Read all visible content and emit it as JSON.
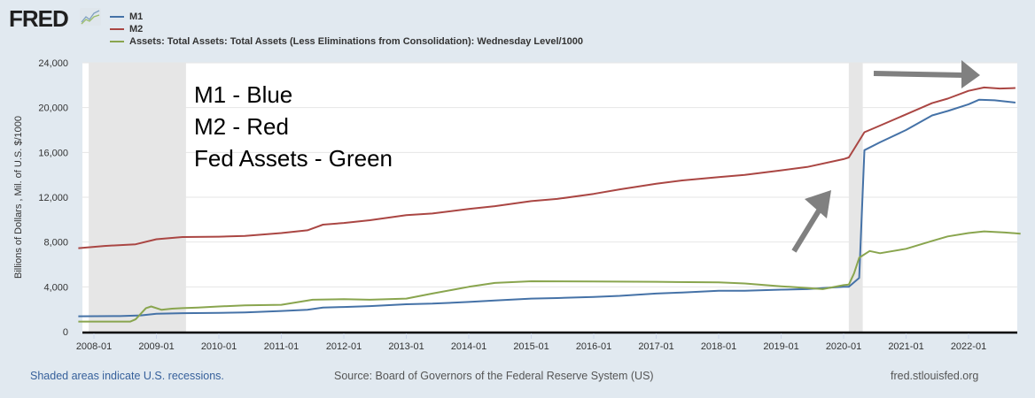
{
  "header": {
    "logo_text": "FRED",
    "logo_icon": "chart-line-icon",
    "legend": [
      {
        "label": "M1",
        "color": "#4572a7"
      },
      {
        "label": "M2",
        "color": "#aa4643"
      },
      {
        "label": "Assets: Total Assets: Total Assets (Less Eliminations from Consolidation): Wednesday Level/1000",
        "color": "#89a54e"
      }
    ]
  },
  "annotation": {
    "lines": [
      "M1 - Blue",
      "M2 - Red",
      "Fed Assets - Green"
    ],
    "arrows": [
      "arrow-up-right-icon",
      "arrow-right-icon"
    ],
    "arrow_color": "#808080"
  },
  "footer": {
    "recession_note": "Shaded areas indicate U.S. recessions.",
    "source": "Source: Board of Governors of the Federal Reserve System (US)",
    "site": "fred.stlouisfed.org"
  },
  "chart_data": {
    "type": "line",
    "title": "",
    "xlabel": "",
    "ylabel": "Billions of Dollars , Mil. of U.S. $/1000",
    "xlim": [
      "2007-10",
      "2022-11"
    ],
    "ylim": [
      0,
      24000
    ],
    "grid": true,
    "legend_position": "top-left",
    "x_ticks": [
      "2008-01",
      "2009-01",
      "2010-01",
      "2011-01",
      "2012-01",
      "2013-01",
      "2014-01",
      "2015-01",
      "2016-01",
      "2017-01",
      "2018-01",
      "2019-01",
      "2020-01",
      "2021-01",
      "2022-01"
    ],
    "y_ticks": [
      "0",
      "4,000",
      "8,000",
      "12,000",
      "16,000",
      "20,000",
      "24,000"
    ],
    "y_tick_values": [
      0,
      4000,
      8000,
      12000,
      16000,
      20000,
      24000
    ],
    "recessions": [
      [
        "2007-12",
        "2009-06"
      ],
      [
        "2020-02",
        "2020-04"
      ]
    ],
    "series": [
      {
        "name": "M1",
        "color": "#4572a7",
        "points": [
          [
            "2007-10",
            1370
          ],
          [
            "2008-06",
            1390
          ],
          [
            "2008-10",
            1450
          ],
          [
            "2009-01",
            1600
          ],
          [
            "2009-06",
            1650
          ],
          [
            "2010-01",
            1680
          ],
          [
            "2010-06",
            1720
          ],
          [
            "2011-01",
            1850
          ],
          [
            "2011-06",
            1950
          ],
          [
            "2011-09",
            2150
          ],
          [
            "2012-01",
            2200
          ],
          [
            "2012-06",
            2280
          ],
          [
            "2013-01",
            2450
          ],
          [
            "2013-06",
            2500
          ],
          [
            "2014-01",
            2650
          ],
          [
            "2014-06",
            2780
          ],
          [
            "2015-01",
            2950
          ],
          [
            "2015-06",
            3000
          ],
          [
            "2016-01",
            3100
          ],
          [
            "2016-06",
            3200
          ],
          [
            "2017-01",
            3400
          ],
          [
            "2017-06",
            3500
          ],
          [
            "2018-01",
            3650
          ],
          [
            "2018-06",
            3650
          ],
          [
            "2019-01",
            3750
          ],
          [
            "2019-06",
            3800
          ],
          [
            "2020-01",
            4000
          ],
          [
            "2020-02",
            4000
          ],
          [
            "2020-04",
            4800
          ],
          [
            "2020-05",
            16200
          ],
          [
            "2020-08",
            16900
          ],
          [
            "2021-01",
            18000
          ],
          [
            "2021-06",
            19300
          ],
          [
            "2021-09",
            19700
          ],
          [
            "2022-01",
            20300
          ],
          [
            "2022-03",
            20700
          ],
          [
            "2022-06",
            20650
          ],
          [
            "2022-10",
            20450
          ]
        ]
      },
      {
        "name": "M2",
        "color": "#aa4643",
        "points": [
          [
            "2007-10",
            7450
          ],
          [
            "2008-03",
            7650
          ],
          [
            "2008-09",
            7800
          ],
          [
            "2009-01",
            8250
          ],
          [
            "2009-06",
            8450
          ],
          [
            "2010-01",
            8480
          ],
          [
            "2010-06",
            8550
          ],
          [
            "2011-01",
            8800
          ],
          [
            "2011-06",
            9050
          ],
          [
            "2011-09",
            9550
          ],
          [
            "2012-01",
            9700
          ],
          [
            "2012-06",
            9950
          ],
          [
            "2013-01",
            10400
          ],
          [
            "2013-06",
            10550
          ],
          [
            "2014-01",
            10950
          ],
          [
            "2014-06",
            11200
          ],
          [
            "2015-01",
            11650
          ],
          [
            "2015-06",
            11850
          ],
          [
            "2016-01",
            12300
          ],
          [
            "2016-06",
            12700
          ],
          [
            "2017-01",
            13200
          ],
          [
            "2017-06",
            13500
          ],
          [
            "2018-01",
            13800
          ],
          [
            "2018-06",
            14000
          ],
          [
            "2019-01",
            14400
          ],
          [
            "2019-06",
            14700
          ],
          [
            "2020-01",
            15400
          ],
          [
            "2020-02",
            15550
          ],
          [
            "2020-03",
            16300
          ],
          [
            "2020-05",
            17800
          ],
          [
            "2020-07",
            18200
          ],
          [
            "2021-01",
            19400
          ],
          [
            "2021-06",
            20400
          ],
          [
            "2021-09",
            20800
          ],
          [
            "2022-01",
            21500
          ],
          [
            "2022-04",
            21800
          ],
          [
            "2022-07",
            21700
          ],
          [
            "2022-10",
            21750
          ]
        ]
      },
      {
        "name": "Assets: Total Assets: Total Assets (Less Eliminations from Consolidation): Wednesday Level/1000",
        "color": "#89a54e",
        "points": [
          [
            "2007-10",
            900
          ],
          [
            "2008-08",
            900
          ],
          [
            "2008-09",
            1100
          ],
          [
            "2008-11",
            2100
          ],
          [
            "2008-12",
            2250
          ],
          [
            "2009-02",
            1950
          ],
          [
            "2009-04",
            2050
          ],
          [
            "2009-06",
            2100
          ],
          [
            "2009-09",
            2150
          ],
          [
            "2010-01",
            2250
          ],
          [
            "2010-06",
            2350
          ],
          [
            "2011-01",
            2400
          ],
          [
            "2011-07",
            2850
          ],
          [
            "2012-01",
            2900
          ],
          [
            "2012-06",
            2850
          ],
          [
            "2013-01",
            2950
          ],
          [
            "2013-06",
            3400
          ],
          [
            "2014-01",
            4000
          ],
          [
            "2014-06",
            4350
          ],
          [
            "2015-01",
            4500
          ],
          [
            "2016-01",
            4480
          ],
          [
            "2017-01",
            4450
          ],
          [
            "2018-01",
            4400
          ],
          [
            "2018-06",
            4300
          ],
          [
            "2019-01",
            4050
          ],
          [
            "2019-06",
            3900
          ],
          [
            "2019-09",
            3800
          ],
          [
            "2020-01",
            4150
          ],
          [
            "2020-02",
            4200
          ],
          [
            "2020-03",
            5200
          ],
          [
            "2020-04",
            6600
          ],
          [
            "2020-06",
            7200
          ],
          [
            "2020-08",
            7000
          ],
          [
            "2021-01",
            7400
          ],
          [
            "2021-06",
            8100
          ],
          [
            "2021-09",
            8500
          ],
          [
            "2022-01",
            8800
          ],
          [
            "2022-04",
            8950
          ],
          [
            "2022-08",
            8850
          ],
          [
            "2022-11",
            8750
          ]
        ]
      }
    ]
  }
}
